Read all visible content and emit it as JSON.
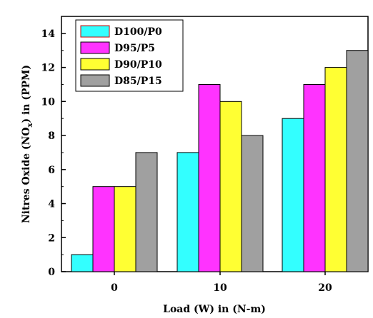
{
  "chart_data": {
    "type": "bar",
    "xlabel": "Load (W) in (N-m)",
    "ylabel_prefix": "Nitres Oxide (NO",
    "ylabel_sub": "x",
    "ylabel_suffix": ") in (PPM)",
    "categories": [
      "0",
      "10",
      "20"
    ],
    "ylim": [
      0,
      15
    ],
    "yticks": [
      "0",
      "2",
      "4",
      "6",
      "8",
      "10",
      "12",
      "14"
    ],
    "ytick_values": [
      0,
      2,
      4,
      6,
      8,
      10,
      12,
      14
    ],
    "grid": false,
    "legend_position": "top-left",
    "series": [
      {
        "name": "D100/P0",
        "color": "#33ffff",
        "values": [
          1,
          7,
          9
        ]
      },
      {
        "name": "D95/P5",
        "color": "#ff33ff",
        "values": [
          5,
          11,
          11
        ]
      },
      {
        "name": "D90/P10",
        "color": "#ffff33",
        "values": [
          5,
          10,
          12
        ]
      },
      {
        "name": "D85/P15",
        "color": "#a0a0a0",
        "values": [
          7,
          8,
          13
        ]
      }
    ]
  }
}
